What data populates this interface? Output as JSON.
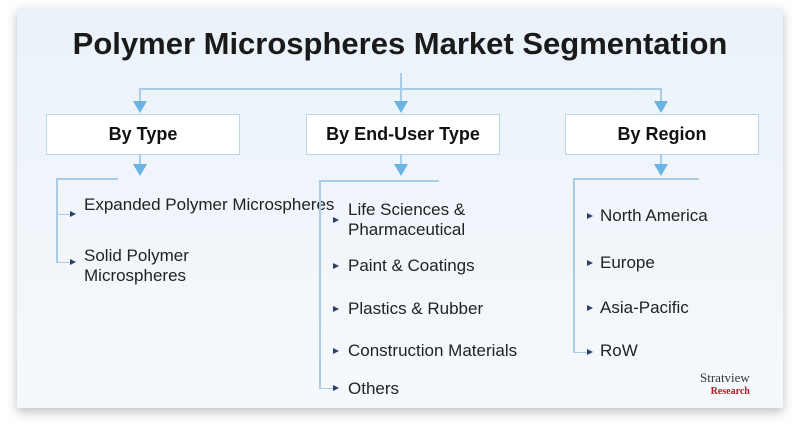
{
  "title": "Polymer Microspheres Market Segmentation",
  "segments": [
    {
      "label": "By Type",
      "items": [
        "Expanded Polymer Microspheres",
        "Solid Polymer Microspheres"
      ]
    },
    {
      "label": "By End-User Type",
      "items": [
        "Life Sciences & Pharmaceutical",
        "Paint & Coatings",
        "Plastics & Rubber",
        "Construction Materials",
        "Others"
      ]
    },
    {
      "label": "By Region",
      "items": [
        "North America",
        "Europe",
        "Asia-Pacific",
        "RoW"
      ]
    }
  ],
  "logo": {
    "name": "Stratview",
    "sub": "Research"
  },
  "colors": {
    "connector": "#a9cde6",
    "arrow": "#6ab4e3",
    "bullet": "#2a3f6a"
  }
}
